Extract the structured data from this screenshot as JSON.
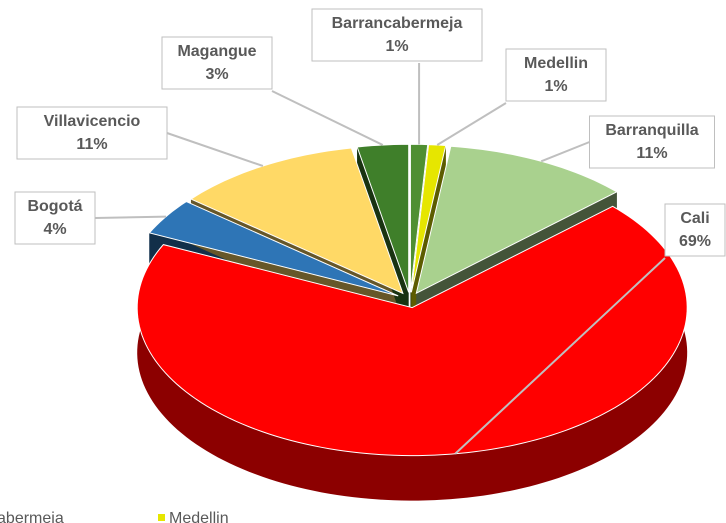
{
  "chart_data": {
    "type": "pie3d",
    "categories": [
      "Barrancabermeja",
      "Medellin",
      "Barranquilla",
      "Cali",
      "Bogotá",
      "Villavicencio",
      "Magangue"
    ],
    "values": [
      1,
      1,
      11,
      69,
      4,
      11,
      3
    ],
    "value_labels": [
      "1%",
      "1%",
      "11%",
      "69%",
      "4%",
      "11%",
      "3%"
    ],
    "colors": [
      "#4f8f32",
      "#e6e600",
      "#a9d18e",
      "#ff0000",
      "#2e75b6",
      "#ffd966",
      "#3f7f2a"
    ],
    "legend": "bottom"
  }
}
